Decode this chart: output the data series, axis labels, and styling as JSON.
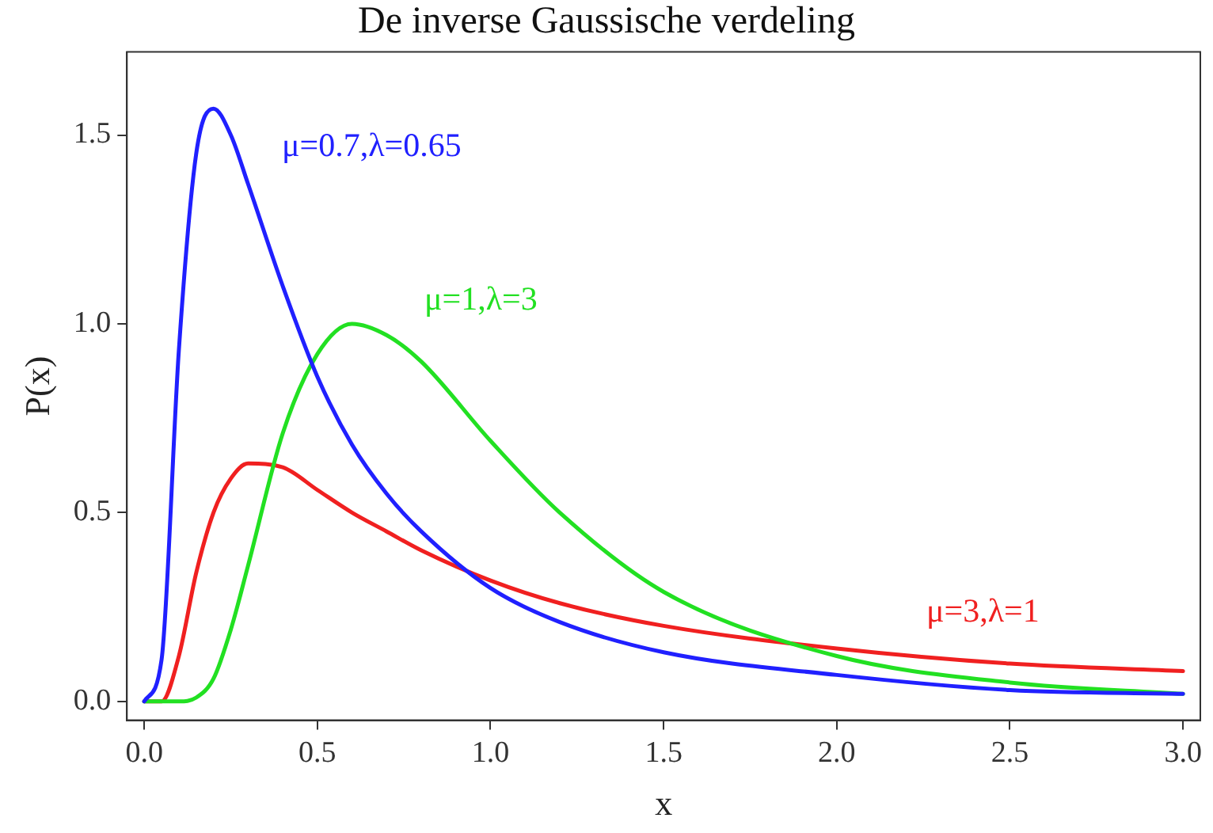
{
  "chart_data": {
    "type": "line",
    "title": "De inverse Gaussische verdeling",
    "xlabel": "x",
    "ylabel": "P(x)",
    "xlim": [
      -0.05,
      3.05
    ],
    "ylim": [
      -0.05,
      1.72
    ],
    "xticks": [
      {
        "value": 0,
        "label": "0.0"
      },
      {
        "value": 0.5,
        "label": "0.5"
      },
      {
        "value": 1,
        "label": "1.0"
      },
      {
        "value": 1.5,
        "label": "1.5"
      },
      {
        "value": 2,
        "label": "2.0"
      },
      {
        "value": 2.5,
        "label": "2.5"
      },
      {
        "value": 3,
        "label": "3.0"
      }
    ],
    "yticks": [
      {
        "value": 0,
        "label": "0.0"
      },
      {
        "value": 0.5,
        "label": "0.5"
      },
      {
        "value": 1,
        "label": "1.0"
      },
      {
        "value": 1.5,
        "label": "1.5"
      }
    ],
    "grid": false,
    "legend": false,
    "marker": "none",
    "line_style": "solid",
    "x": [
      0,
      0.05,
      0.1,
      0.15,
      0.2,
      0.25,
      0.3,
      0.4,
      0.5,
      0.6,
      0.7,
      0.8,
      1.0,
      1.2,
      1.5,
      2.0,
      2.5,
      3.0
    ],
    "series": [
      {
        "name": "μ=0.7,λ=0.65",
        "color": "#2020ff",
        "values": [
          0,
          0.11,
          0.93,
          1.45,
          1.57,
          1.5,
          1.37,
          1.1,
          0.86,
          0.68,
          0.55,
          0.45,
          0.3,
          0.21,
          0.13,
          0.07,
          0.03,
          0.02
        ]
      },
      {
        "name": "μ=1,λ=3",
        "color": "#22e022",
        "values": [
          0,
          0,
          0,
          0.01,
          0.06,
          0.19,
          0.36,
          0.71,
          0.92,
          1.0,
          0.97,
          0.9,
          0.69,
          0.5,
          0.29,
          0.12,
          0.05,
          0.02
        ]
      },
      {
        "name": "μ=3,λ=1",
        "color": "#f02020",
        "values": [
          0,
          0,
          0.12,
          0.34,
          0.5,
          0.59,
          0.63,
          0.62,
          0.56,
          0.5,
          0.45,
          0.4,
          0.32,
          0.26,
          0.2,
          0.14,
          0.1,
          0.08
        ]
      }
    ]
  }
}
